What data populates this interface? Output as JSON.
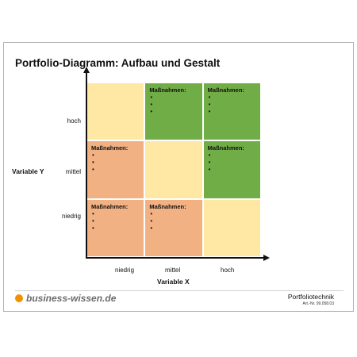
{
  "title": "Portfolio-Diagramm: Aufbau und Gestalt",
  "y_axis": {
    "label": "Variable Y",
    "ticks": [
      "hoch",
      "mittel",
      "niedrig"
    ]
  },
  "x_axis": {
    "label": "Variable X",
    "ticks": [
      "niedrig",
      "mittel",
      "hoch"
    ]
  },
  "matrix": {
    "rows": [
      {
        "row": "hoch",
        "cells": [
          {
            "color": "#ffe8a3",
            "heading": "",
            "bullets": []
          },
          {
            "color": "#71ad46",
            "heading": "Maßnahmen:",
            "bullets": [
              "•",
              "•",
              "•"
            ]
          },
          {
            "color": "#71ad46",
            "heading": "Maßnahmen:",
            "bullets": [
              "•",
              "•",
              "•"
            ]
          }
        ]
      },
      {
        "row": "mittel",
        "cells": [
          {
            "color": "#f2b183",
            "heading": "Maßnahmen:",
            "bullets": [
              "•",
              "•",
              "•"
            ]
          },
          {
            "color": "#ffe8a3",
            "heading": "",
            "bullets": []
          },
          {
            "color": "#71ad46",
            "heading": "Maßnahmen:",
            "bullets": [
              "•",
              "•",
              "•"
            ]
          }
        ]
      },
      {
        "row": "niedrig",
        "cells": [
          {
            "color": "#f2b183",
            "heading": "Maßnahmen:",
            "bullets": [
              "•",
              "•",
              "•"
            ]
          },
          {
            "color": "#f2b183",
            "heading": "Maßnahmen:",
            "bullets": [
              "•",
              "•",
              "•"
            ]
          },
          {
            "color": "#ffe8a3",
            "heading": "",
            "bullets": []
          }
        ]
      }
    ]
  },
  "footer": {
    "brand": "business-wissen.de",
    "brand_color": "#f29100",
    "product": "Portfoliotechnik",
    "article_number": "Art.-Nr. 99.058.03"
  }
}
